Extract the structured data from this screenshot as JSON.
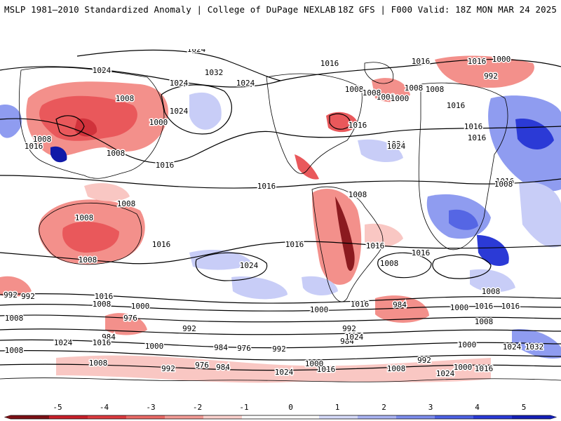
{
  "header": {
    "left_title": "MSLP 1981–2010 Standardized Anomaly | College of DuPage NEXLAB",
    "right_title": "18Z GFS | F000 Valid: 18Z MON MAR 24 2025"
  },
  "map": {
    "projection": "global cylindrical, Pacific-centered",
    "variable": "MSLP standardized anomaly with isobars",
    "isobar_labels": [
      {
        "text": "1024"
      },
      {
        "text": "1024"
      },
      {
        "text": "1032"
      },
      {
        "text": "1024"
      },
      {
        "text": "1024"
      },
      {
        "text": "1016"
      },
      {
        "text": "1008"
      },
      {
        "text": "1008"
      },
      {
        "text": "1016"
      },
      {
        "text": "1016"
      },
      {
        "text": "1016"
      },
      {
        "text": "1008"
      },
      {
        "text": "1000"
      },
      {
        "text": "1008"
      },
      {
        "text": "1000"
      },
      {
        "text": "1008"
      },
      {
        "text": "992"
      },
      {
        "text": "1008"
      },
      {
        "text": "1000"
      },
      {
        "text": "1008"
      },
      {
        "text": "1016"
      },
      {
        "text": "1016"
      },
      {
        "text": "1016"
      },
      {
        "text": "1024"
      },
      {
        "text": "1016"
      },
      {
        "text": "1024"
      },
      {
        "text": "1016"
      },
      {
        "text": "1008"
      },
      {
        "text": "1008"
      },
      {
        "text": "1008"
      },
      {
        "text": "1008"
      },
      {
        "text": "1008"
      },
      {
        "text": "1016"
      },
      {
        "text": "1016"
      },
      {
        "text": "1016"
      },
      {
        "text": "1008"
      },
      {
        "text": "1016"
      },
      {
        "text": "1008"
      },
      {
        "text": "1016"
      },
      {
        "text": "1024"
      },
      {
        "text": "1016"
      },
      {
        "text": "992"
      },
      {
        "text": "1016"
      },
      {
        "text": "1008"
      },
      {
        "text": "1000"
      },
      {
        "text": "976"
      },
      {
        "text": "992"
      },
      {
        "text": "1016"
      },
      {
        "text": "1008"
      },
      {
        "text": "1000"
      },
      {
        "text": "984"
      },
      {
        "text": "1008"
      },
      {
        "text": "1016"
      },
      {
        "text": "1000"
      },
      {
        "text": "992"
      },
      {
        "text": "1008"
      },
      {
        "text": "1016"
      },
      {
        "text": "1000"
      },
      {
        "text": "984"
      },
      {
        "text": "1024"
      },
      {
        "text": "1008"
      },
      {
        "text": "992"
      },
      {
        "text": "984"
      },
      {
        "text": "1016"
      },
      {
        "text": "1024"
      },
      {
        "text": "1000"
      },
      {
        "text": "1008"
      },
      {
        "text": "992"
      },
      {
        "text": "976"
      },
      {
        "text": "984"
      },
      {
        "text": "976"
      },
      {
        "text": "992"
      },
      {
        "text": "984"
      },
      {
        "text": "1000"
      },
      {
        "text": "1016"
      },
      {
        "text": "1024"
      },
      {
        "text": "1008"
      },
      {
        "text": "1008"
      },
      {
        "text": "992"
      },
      {
        "text": "1000"
      },
      {
        "text": "1032"
      },
      {
        "text": "1016"
      },
      {
        "text": "1024"
      },
      {
        "text": "1024"
      },
      {
        "text": "1024"
      }
    ],
    "colors": {
      "land_outline": "#000000",
      "isobar": "#000000",
      "neg_1": "#f9c7c3",
      "neg_2": "#f3908b",
      "neg_3": "#e9585b",
      "neg_4": "#d0323b",
      "neg_5": "#8b1a1f",
      "pos_1": "#c8cdf7",
      "pos_2": "#8f9cf0",
      "pos_3": "#5566e4",
      "pos_4": "#2b3ad6",
      "pos_5": "#1019a8"
    }
  },
  "colorbar": {
    "ticks": [
      "-5",
      "-4",
      "-3",
      "-2",
      "-1",
      "0",
      "1",
      "2",
      "3",
      "4",
      "5"
    ],
    "colors": [
      "#7d1116",
      "#c8202a",
      "#dc3a3f",
      "#ea6a66",
      "#f39b96",
      "#fbd1cd",
      "#ffffff",
      "#ffffff",
      "#d6dbfa",
      "#aab4f3",
      "#7d8ded",
      "#4d61e4",
      "#2a3ad8",
      "#1520b8"
    ]
  }
}
